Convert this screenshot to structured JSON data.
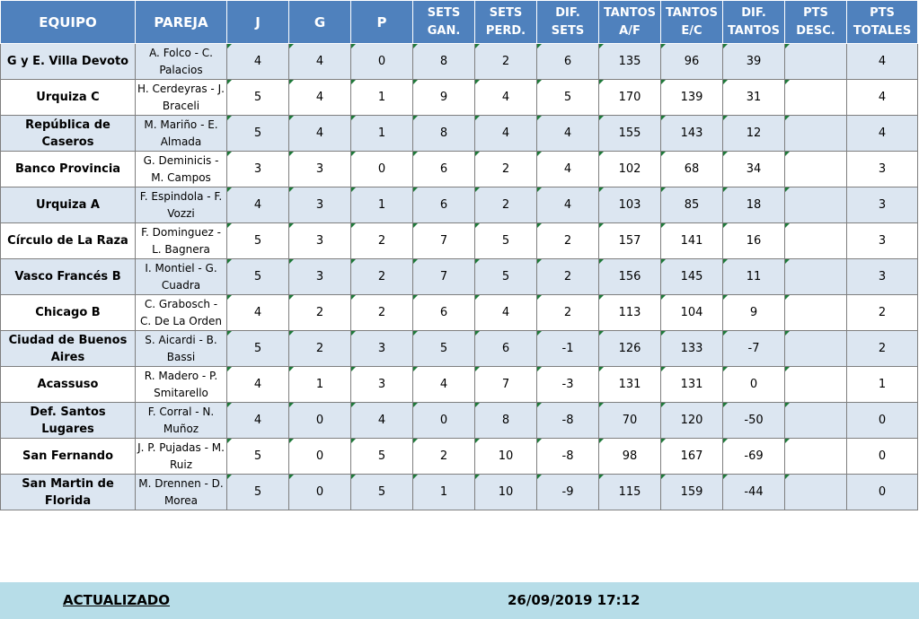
{
  "headers": [
    "EQUIPO",
    "PAREJA",
    "J",
    "G",
    "P",
    "SETS GAN.",
    "SETS PERD.",
    "DIF. SETS",
    "TANTOS A/F",
    "TANTOS E/C",
    "DIF. TANTOS",
    "PTS DESC.",
    "PTS TOTALES"
  ],
  "rows": [
    {
      "team": "G y E. Villa Devoto",
      "pair": "A. Folco - C. Palacios",
      "cells": [
        "4",
        "4",
        "0",
        "8",
        "2",
        "6",
        "135",
        "96",
        "39",
        "",
        "4"
      ]
    },
    {
      "team": "Urquiza C",
      "pair": "H. Cerdeyras - J. Braceli",
      "cells": [
        "5",
        "4",
        "1",
        "9",
        "4",
        "5",
        "170",
        "139",
        "31",
        "",
        "4"
      ]
    },
    {
      "team": "República de Caseros",
      "pair": "M. Mariño - E. Almada",
      "cells": [
        "5",
        "4",
        "1",
        "8",
        "4",
        "4",
        "155",
        "143",
        "12",
        "",
        "4"
      ]
    },
    {
      "team": "Banco Provincia",
      "pair": "G. Deminicis - M. Campos",
      "cells": [
        "3",
        "3",
        "0",
        "6",
        "2",
        "4",
        "102",
        "68",
        "34",
        "",
        "3"
      ]
    },
    {
      "team": "Urquiza A",
      "pair": "F. Espindola - F. Vozzi",
      "cells": [
        "4",
        "3",
        "1",
        "6",
        "2",
        "4",
        "103",
        "85",
        "18",
        "",
        "3"
      ]
    },
    {
      "team": "Círculo de La Raza",
      "pair": "F. Dominguez - L. Bagnera",
      "cells": [
        "5",
        "3",
        "2",
        "7",
        "5",
        "2",
        "157",
        "141",
        "16",
        "",
        "3"
      ]
    },
    {
      "team": "Vasco Francés B",
      "pair": "I. Montiel - G. Cuadra",
      "cells": [
        "5",
        "3",
        "2",
        "7",
        "5",
        "2",
        "156",
        "145",
        "11",
        "",
        "3"
      ]
    },
    {
      "team": "Chicago B",
      "pair": "C. Grabosch - C. De La Orden",
      "cells": [
        "4",
        "2",
        "2",
        "6",
        "4",
        "2",
        "113",
        "104",
        "9",
        "",
        "2"
      ]
    },
    {
      "team": "Ciudad de Buenos Aires",
      "pair": "S. Aicardi - B. Bassi",
      "cells": [
        "5",
        "2",
        "3",
        "5",
        "6",
        "-1",
        "126",
        "133",
        "-7",
        "",
        "2"
      ]
    },
    {
      "team": "Acassuso",
      "pair": "R. Madero - P. Smitarello",
      "cells": [
        "4",
        "1",
        "3",
        "4",
        "7",
        "-3",
        "131",
        "131",
        "0",
        "",
        "1"
      ]
    },
    {
      "team": "Def. Santos Lugares",
      "pair": "F. Corral - N. Muñoz",
      "cells": [
        "4",
        "0",
        "4",
        "0",
        "8",
        "-8",
        "70",
        "120",
        "-50",
        "",
        "0"
      ]
    },
    {
      "team": "San Fernando",
      "pair": "J. P. Pujadas - M. Ruiz",
      "cells": [
        "5",
        "0",
        "5",
        "2",
        "10",
        "-8",
        "98",
        "167",
        "-69",
        "",
        "0"
      ]
    },
    {
      "team": "San Martin de Florida",
      "pair": "M. Drennen - D. Morea",
      "cells": [
        "5",
        "0",
        "5",
        "1",
        "10",
        "-9",
        "115",
        "159",
        "-44",
        "",
        "0"
      ]
    }
  ],
  "footer": {
    "label": "ACTUALIZADO",
    "date": "26/09/2019 17:12"
  },
  "colors": {
    "header_bg": "#4f81bd",
    "row_alt": "#dce6f1",
    "footer_bg": "#b7dde8",
    "cell_marker": "#1f7a3a"
  }
}
